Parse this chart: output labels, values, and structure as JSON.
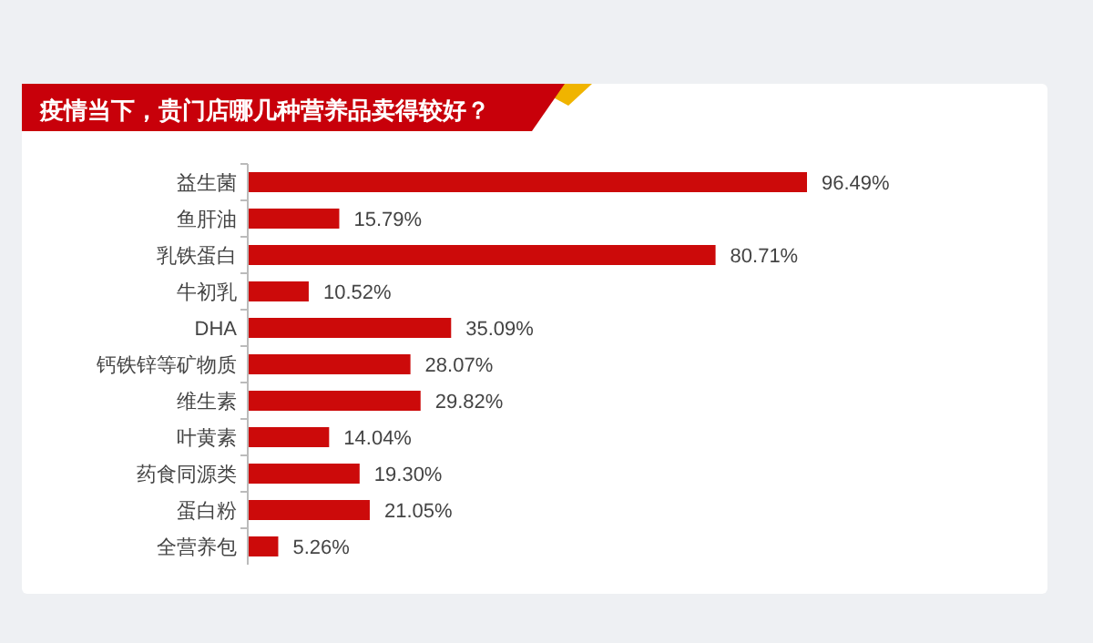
{
  "chart_data": {
    "type": "bar",
    "orientation": "horizontal",
    "title": "疫情当下，贵门店哪几种营养品卖得较好？",
    "categories": [
      "益生菌",
      "鱼肝油",
      "乳铁蛋白",
      "牛初乳",
      "DHA",
      "钙铁锌等矿物质",
      "维生素",
      "叶黄素",
      "药食同源类",
      "蛋白粉",
      "全营养包"
    ],
    "values": [
      96.49,
      15.79,
      80.71,
      10.52,
      35.09,
      28.07,
      29.82,
      14.04,
      19.3,
      21.05,
      5.26
    ],
    "value_labels": [
      "96.49%",
      "15.79%",
      "80.71%",
      "10.52%",
      "35.09%",
      "28.07%",
      "29.82%",
      "14.04%",
      "19.30%",
      "21.05%",
      "5.26%"
    ],
    "color": "#cc0a0a"
  }
}
